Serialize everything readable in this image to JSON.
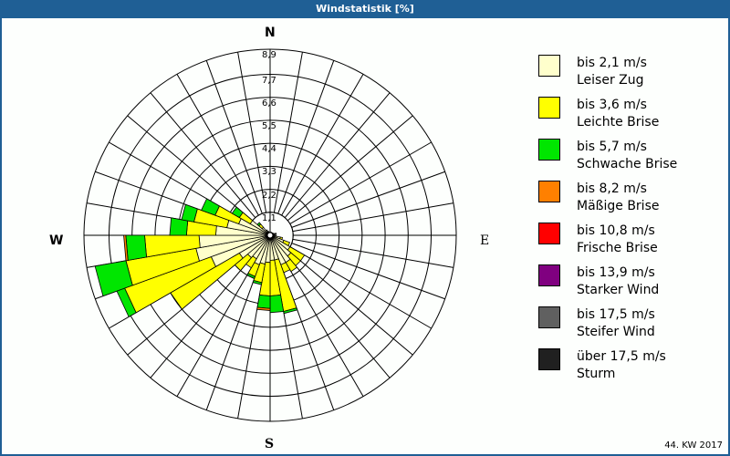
{
  "title": "Windstatistik [%]",
  "footer": "44. KW 2017",
  "compass": {
    "n": "N",
    "e": "E",
    "s": "S",
    "w": "W"
  },
  "ring_labels": [
    "1,1",
    "2,2",
    "3,3",
    "4,4",
    "5,5",
    "6,6",
    "7,7",
    "8,9"
  ],
  "legend": [
    {
      "range": "bis 2,1 m/s",
      "name": "Leiser Zug",
      "color": "#ffffcc"
    },
    {
      "range": "bis 3,6 m/s",
      "name": "Leichte Brise",
      "color": "#ffff00"
    },
    {
      "range": "bis 5,7 m/s",
      "name": "Schwache Brise",
      "color": "#00e600"
    },
    {
      "range": "bis 8,2 m/s",
      "name": "Mäßige Brise",
      "color": "#ff8000"
    },
    {
      "range": "bis 10,8 m/s",
      "name": "Frische Brise",
      "color": "#ff0000"
    },
    {
      "range": "bis 13,9 m/s",
      "name": "Starker Wind",
      "color": "#800080"
    },
    {
      "range": "bis 17,5 m/s",
      "name": "Steifer Wind",
      "color": "#606060"
    },
    {
      "range": "über 17,5 m/s",
      "name": "Sturm",
      "color": "#202020"
    }
  ],
  "chart_data": {
    "type": "polar-stacked-bar (wind rose)",
    "title": "Windstatistik [%]",
    "subtitle": "44. KW 2017",
    "radial_unit": "%",
    "radial_ticks": [
      1.1,
      2.2,
      3.3,
      4.4,
      5.5,
      6.6,
      7.7,
      8.9
    ],
    "rmax": 8.9,
    "sector_width_deg": 10,
    "directions_deg": [
      5,
      15,
      25,
      35,
      45,
      55,
      65,
      75,
      85,
      95,
      105,
      115,
      125,
      135,
      145,
      155,
      165,
      175,
      185,
      195,
      205,
      215,
      225,
      235,
      245,
      255,
      265,
      275,
      285,
      295,
      305,
      315,
      325,
      335,
      345,
      355
    ],
    "series": [
      {
        "name": "bis 2,1 m/s",
        "values": [
          0.1,
          0.1,
          0.1,
          0.1,
          0.1,
          0.1,
          0.2,
          0.3,
          0.2,
          0.3,
          0.5,
          0.7,
          1.1,
          1.3,
          1.5,
          1.5,
          1.2,
          1.2,
          1.3,
          1.4,
          1.5,
          1.3,
          1.4,
          1.7,
          3.0,
          3.6,
          3.4,
          2.6,
          2.1,
          1.6,
          1.1,
          0.5,
          0.3,
          0.2,
          0.1,
          0.1
        ]
      },
      {
        "name": "bis 3,6 m/s",
        "values": [
          0,
          0,
          0,
          0,
          0,
          0,
          0,
          0,
          0,
          0,
          0.1,
          0.3,
          0.8,
          0.6,
          0.5,
          0.4,
          2.5,
          1.7,
          1.6,
          0.9,
          0.6,
          0.5,
          0.8,
          3.8,
          4.4,
          3.4,
          2.6,
          1.4,
          1.6,
          1.2,
          0.6,
          0.2,
          0,
          0,
          0,
          0
        ]
      },
      {
        "name": "bis 5,7 m/s",
        "values": [
          0,
          0,
          0,
          0,
          0,
          0,
          0,
          0,
          0,
          0,
          0,
          0,
          0,
          0,
          0,
          0,
          0.1,
          0.8,
          0.6,
          0.1,
          0.1,
          0,
          0,
          0,
          0.4,
          1.5,
          0.9,
          0.8,
          0.6,
          0.7,
          0.4,
          0.1,
          0,
          0,
          0,
          0
        ]
      },
      {
        "name": "bis 8,2 m/s",
        "values": [
          0,
          0,
          0,
          0,
          0,
          0,
          0,
          0,
          0,
          0,
          0,
          0,
          0,
          0,
          0,
          0,
          0,
          0,
          0.1,
          0,
          0,
          0,
          0,
          0,
          0,
          0,
          0.1,
          0,
          0,
          0,
          0,
          0,
          0,
          0,
          0,
          0
        ]
      },
      {
        "name": "bis 10,8 m/s",
        "values": [
          0,
          0,
          0,
          0,
          0,
          0,
          0,
          0,
          0,
          0,
          0,
          0,
          0,
          0,
          0,
          0,
          0,
          0,
          0,
          0,
          0,
          0,
          0,
          0,
          0,
          0,
          0,
          0,
          0,
          0,
          0,
          0,
          0,
          0,
          0,
          0
        ]
      },
      {
        "name": "bis 13,9 m/s",
        "values": [
          0,
          0,
          0,
          0,
          0,
          0,
          0,
          0,
          0,
          0,
          0,
          0,
          0,
          0,
          0,
          0,
          0,
          0,
          0,
          0,
          0,
          0,
          0,
          0,
          0,
          0,
          0,
          0,
          0,
          0,
          0,
          0,
          0,
          0,
          0,
          0
        ]
      },
      {
        "name": "bis 17,5 m/s",
        "values": [
          0,
          0,
          0,
          0,
          0,
          0,
          0,
          0,
          0,
          0,
          0,
          0,
          0,
          0,
          0,
          0,
          0,
          0,
          0,
          0,
          0,
          0,
          0,
          0,
          0,
          0,
          0,
          0,
          0,
          0,
          0,
          0,
          0,
          0,
          0,
          0
        ]
      },
      {
        "name": "über 17,5 m/s",
        "values": [
          0,
          0,
          0,
          0,
          0,
          0,
          0,
          0,
          0,
          0,
          0,
          0,
          0,
          0,
          0,
          0,
          0,
          0,
          0,
          0,
          0,
          0,
          0,
          0,
          0,
          0,
          0,
          0,
          0,
          0,
          0,
          0,
          0,
          0,
          0,
          0
        ]
      }
    ],
    "legend_position": "right",
    "grid": true
  }
}
